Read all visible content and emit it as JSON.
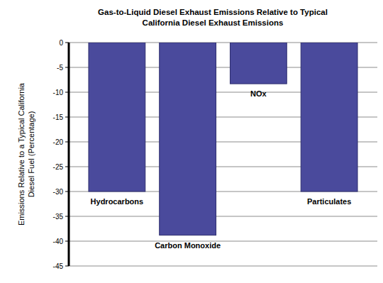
{
  "chart_data": {
    "type": "bar",
    "title": "Gas-to-Liquid Diesel Exhaust Emissions Relative to Typical California Diesel Exhaust Emissions",
    "y_label": "Emissions Relative to a Typical California Diesel Fuel (Percentage)",
    "categories": [
      "Hydrocarbons",
      "Carbon Monoxide",
      "NOx",
      "Particulates"
    ],
    "values": [
      -30,
      -38.8,
      -8.3,
      -30
    ],
    "color": "#4a4a9c",
    "ylim": [
      -45,
      0
    ],
    "yticks": [
      0,
      -5,
      -10,
      -15,
      -20,
      -25,
      -30,
      -35,
      -40,
      -45
    ],
    "grid": true
  }
}
